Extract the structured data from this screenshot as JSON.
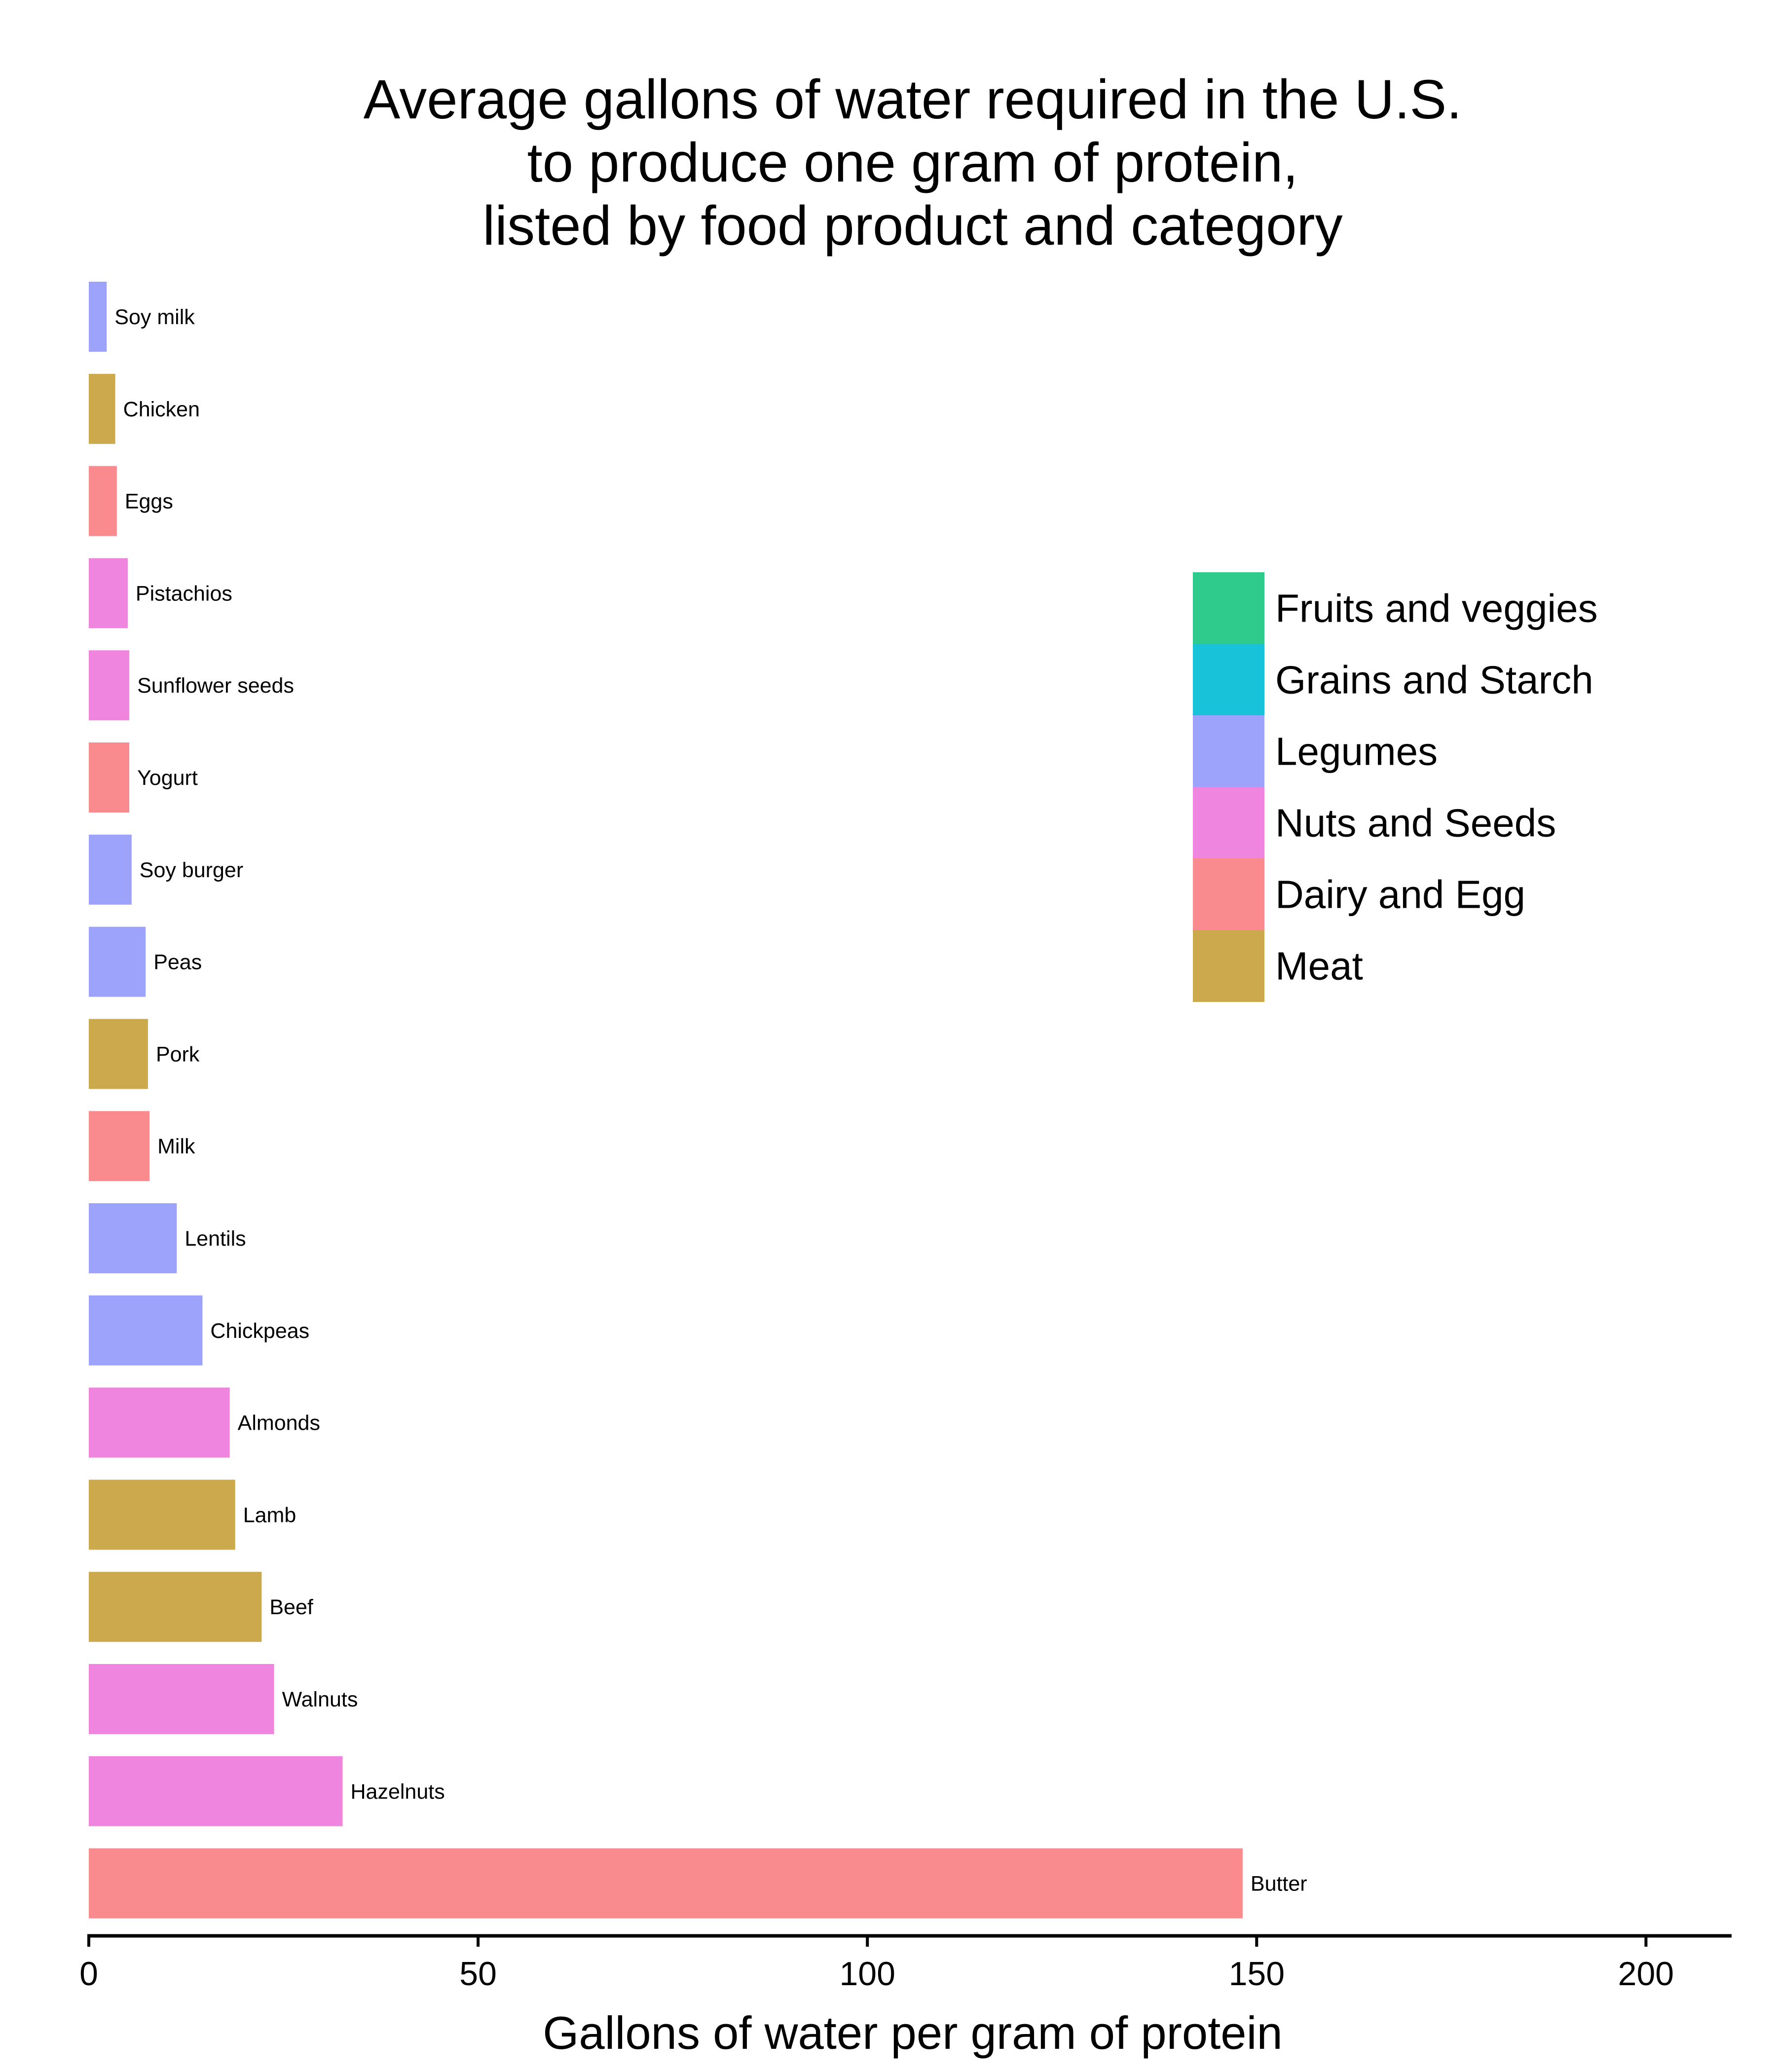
{
  "chart_data": {
    "type": "bar",
    "orientation": "horizontal",
    "title_lines": [
      "Average gallons of water required in the U.S.",
      "to produce one gram of protein,",
      "listed by food product and category"
    ],
    "xlabel": "Gallons of water per gram of protein",
    "ylabel": "",
    "xlim": [
      0,
      211
    ],
    "xticks": [
      "0",
      "50",
      "100",
      "150",
      "200"
    ],
    "grid": false,
    "legend_position": "right",
    "legend": [
      {
        "name": "Fruits and veggies",
        "color": "#2ecb8c"
      },
      {
        "name": "Grains and Starch",
        "color": "#18c3d9"
      },
      {
        "name": "Legumes",
        "color": "#9da3fb"
      },
      {
        "name": "Nuts and Seeds",
        "color": "#ef85de"
      },
      {
        "name": "Dairy and Egg",
        "color": "#f98b8e"
      },
      {
        "name": "Meat",
        "color": "#cda94e"
      }
    ],
    "categories": [
      "Soy milk",
      "Chicken",
      "Eggs",
      "Pistachios",
      "Sunflower seeds",
      "Yogurt",
      "Soy burger",
      "Peas",
      "Pork",
      "Milk",
      "Lentils",
      "Chickpeas",
      "Almonds",
      "Lamb",
      "Beef",
      "Walnuts",
      "Hazelnuts",
      "Butter"
    ],
    "values": [
      2.3,
      3.4,
      3.6,
      5.0,
      5.2,
      5.2,
      5.5,
      7.3,
      7.6,
      7.8,
      11.3,
      14.6,
      18.1,
      18.8,
      22.2,
      23.8,
      32.6,
      148.2
    ],
    "groups": [
      "Legumes",
      "Meat",
      "Dairy and Egg",
      "Nuts and Seeds",
      "Nuts and Seeds",
      "Dairy and Egg",
      "Legumes",
      "Legumes",
      "Meat",
      "Dairy and Egg",
      "Legumes",
      "Legumes",
      "Nuts and Seeds",
      "Meat",
      "Meat",
      "Nuts and Seeds",
      "Nuts and Seeds",
      "Dairy and Egg"
    ]
  }
}
